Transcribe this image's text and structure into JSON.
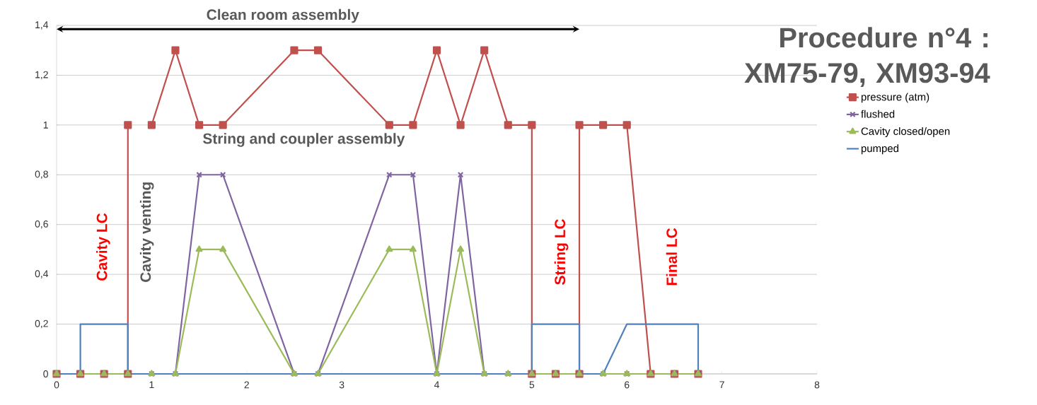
{
  "chart_data": {
    "type": "line",
    "title": "Procedure n°4 : XM75-79, XM93-94",
    "annotations": [
      "Clean room assembly",
      "String and coupler assembly",
      "Cavity LC",
      "Cavity venting",
      "String LC",
      "Final LC"
    ],
    "series": [
      {
        "name": "pressure (atm)",
        "color": "#c0504d",
        "marker": "square",
        "x": [
          0,
          0.25,
          0.5,
          0.75,
          0.75,
          0.875,
          1,
          1.25,
          1.5,
          1.75,
          2.5,
          2.75,
          3.5,
          3.75,
          4,
          4.25,
          4.5,
          4.75,
          5,
          5,
          5.25,
          5.5,
          5.5,
          5.75,
          6,
          6.25,
          6.5,
          6.75
        ],
        "values": [
          0,
          0,
          0,
          0,
          1,
          null,
          1,
          1.3,
          1,
          1,
          1.3,
          1.3,
          1,
          1,
          1.3,
          1,
          1.3,
          1,
          1,
          0,
          0,
          0,
          1,
          1,
          1,
          0,
          0,
          0
        ]
      },
      {
        "name": "flushed",
        "color": "#8064a2",
        "marker": "cross",
        "x": [
          0,
          0.25,
          0.5,
          0.75,
          1,
          1.25,
          1.5,
          1.75,
          2.5,
          2.75,
          3.5,
          3.75,
          4,
          4.25,
          4.5,
          4.75,
          5,
          5.25,
          5.5,
          5.75,
          6,
          6.25,
          6.5,
          6.75
        ],
        "values": [
          0,
          0,
          0,
          0,
          0,
          0,
          0.8,
          0.8,
          0,
          0,
          0.8,
          0.8,
          0,
          0.8,
          0,
          0,
          0,
          0,
          0,
          0,
          0,
          0,
          0,
          0
        ]
      },
      {
        "name": "Cavity closed/open",
        "color": "#9bbb59",
        "marker": "triangle",
        "x": [
          0,
          0.25,
          0.5,
          0.75,
          1,
          1.25,
          1.5,
          1.75,
          2.5,
          2.75,
          3.5,
          3.75,
          4,
          4.25,
          4.5,
          4.75,
          5,
          5.25,
          5.5,
          5.75,
          6,
          6.25,
          6.5,
          6.75
        ],
        "values": [
          0,
          0,
          0,
          0,
          0,
          0,
          0.5,
          0.5,
          0,
          0,
          0.5,
          0.5,
          0,
          0.5,
          0,
          0,
          0,
          0,
          0,
          0,
          0,
          0,
          0,
          0
        ]
      },
      {
        "name": "pumped",
        "color": "#4f81bd",
        "marker": "none",
        "x": [
          0,
          0.25,
          0.25,
          0.75,
          0.75,
          5,
          5,
          5.5,
          5.5,
          5.75,
          6,
          6.75,
          6.75
        ],
        "values": [
          0,
          0,
          0.2,
          0.2,
          0,
          0,
          0.2,
          0.2,
          0,
          0,
          0.2,
          0.2,
          0
        ]
      }
    ],
    "xlim": [
      0,
      8
    ],
    "ylim": [
      0,
      1.4
    ],
    "xticks": [
      0,
      1,
      2,
      3,
      4,
      5,
      6,
      7,
      8
    ],
    "yticks": [
      0,
      {
        "value": 0.2,
        "label": "0,2"
      },
      {
        "value": 0.4,
        "label": "0,4"
      },
      {
        "value": 0.6,
        "label": "0,6"
      },
      {
        "value": 0.8,
        "label": "0,8"
      },
      1,
      {
        "value": 1.2,
        "label": "1,2"
      },
      {
        "value": 1.4,
        "label": "1,4"
      }
    ],
    "grid": "y",
    "legend": "right",
    "line_style": "solid"
  }
}
